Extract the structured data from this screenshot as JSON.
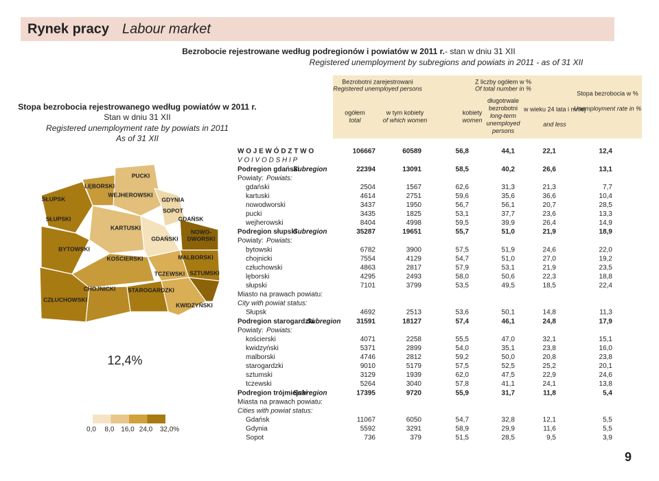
{
  "header": {
    "title": "Rynek pracy",
    "title_en": "Labour market",
    "page_number": "9"
  },
  "table_title": {
    "line1": "Bezrobocie rejestrowane według podregionów i powiatów w 2011 r.",
    "line1_suffix": " - stan w dniu 31 XII",
    "line2": "Registered unemployment by subregions and powiats in 2011 - as of 31 XII"
  },
  "map": {
    "title": "Stopa bezrobocia rejestrowanego według powiatów w 2011 r.",
    "subtitle1": "Stan w dniu 31 XII",
    "subtitle2": "Registered unemployment rate by powiats in 2011",
    "subtitle3": "As of 31 XII",
    "labels": [
      "PUCKI",
      "LĘBORSKI",
      "WEJHEROWSKI",
      "SŁUPSK",
      "GDYNIA",
      "SOPOT",
      "SŁUPSKI",
      "GDAŃSK",
      "KARTUSKI",
      "NOWO-",
      "DWORSKI",
      "GDAŃSKI",
      "BYTOWSKI",
      "MALBORSKI",
      "KOŚCIERSKI",
      "TCZEWSKI",
      "SZTUMSKI",
      "CHOJNICKI",
      "STAROGARDZKI",
      "CZŁUCHOWSKI",
      "KWIDZYŃSKI"
    ],
    "average": "12,4%",
    "legend_ticks": [
      "0,0",
      "8,0",
      "16,0",
      "24,0",
      "32,0%"
    ]
  },
  "table": {
    "columns": {
      "group1": "Bezrobotni zarejestrowani",
      "group1_en": "Registered unemployed persons",
      "total": "ogółem",
      "total_en": "total",
      "women_of": "w tym kobiety",
      "women_of_en": "of which women",
      "group2": "Z liczby ogółem w %",
      "group2_en": "Of total number in %",
      "women": "kobiety",
      "women_en": "women",
      "longterm": "długotrwale bezrobotni",
      "longterm_en": "long-term unemployed persons",
      "age": "w wieku 24 lata i mniej",
      "age_en": "and less",
      "rate": "Stopa bezrobocia w %",
      "rate_en": "Unemployment rate in %"
    },
    "rows": [
      {
        "label": "W O J E W Ó D Z T W O",
        "values": [
          "106667",
          "60589",
          "56,8",
          "44,1",
          "22,1",
          "12,4"
        ]
      },
      {
        "label": "V O I V O D S H I P"
      },
      {
        "label": "Podregion gdański",
        "label_en": "Subregion",
        "values": [
          "22394",
          "13091",
          "58,5",
          "40,2",
          "26,6",
          "13,1"
        ]
      },
      {
        "label": "Powiaty:",
        "label_en": "Powiats:"
      },
      {
        "label": "gdański",
        "values": [
          "2504",
          "1567",
          "62,6",
          "31,3",
          "21,3",
          "7,7"
        ]
      },
      {
        "label": "kartuski",
        "values": [
          "4614",
          "2751",
          "59,6",
          "35,6",
          "36,6",
          "10,4"
        ]
      },
      {
        "label": "nowodworski",
        "values": [
          "3437",
          "1950",
          "56,7",
          "56,1",
          "20,7",
          "28,5"
        ]
      },
      {
        "label": "pucki",
        "values": [
          "3435",
          "1825",
          "53,1",
          "37,7",
          "23,6",
          "13,3"
        ]
      },
      {
        "label": "wejherowski",
        "values": [
          "8404",
          "4998",
          "59,5",
          "39,9",
          "26,4",
          "14,9"
        ]
      },
      {
        "label": "Podregion słupski",
        "label_en": "Subregion",
        "values": [
          "35287",
          "19651",
          "55,7",
          "51,0",
          "21,9",
          "18,9"
        ]
      },
      {
        "label": "Powiaty:",
        "label_en": "Powiats:"
      },
      {
        "label": "bytowski",
        "values": [
          "6782",
          "3900",
          "57,5",
          "51,9",
          "24,6",
          "22,0"
        ]
      },
      {
        "label": "chojnicki",
        "values": [
          "7554",
          "4129",
          "54,7",
          "51,0",
          "27,0",
          "19,2"
        ]
      },
      {
        "label": "człuchowski",
        "values": [
          "4863",
          "2817",
          "57,9",
          "53,1",
          "21,9",
          "23,5"
        ]
      },
      {
        "label": "lęborski",
        "values": [
          "4295",
          "2493",
          "58,0",
          "50,6",
          "22,3",
          "18,8"
        ]
      },
      {
        "label": "słupski",
        "values": [
          "7101",
          "3799",
          "53,5",
          "49,5",
          "18,5",
          "22,4"
        ]
      },
      {
        "label": "Miasto na prawach powiatu:"
      },
      {
        "label": "City with powiat status:"
      },
      {
        "label": "Słupsk",
        "values": [
          "4692",
          "2513",
          "53,6",
          "50,1",
          "14,8",
          "11,3"
        ]
      },
      {
        "label": "Podregion starogardzki",
        "label_en": "Subregion",
        "values": [
          "31591",
          "18127",
          "57,4",
          "46,1",
          "24,8",
          "17,9"
        ]
      },
      {
        "label": "Powiaty:",
        "label_en": "Powiats:"
      },
      {
        "label": "kościerski",
        "values": [
          "4071",
          "2258",
          "55,5",
          "47,0",
          "32,1",
          "15,1"
        ]
      },
      {
        "label": "kwidzyński",
        "values": [
          "5371",
          "2899",
          "54,0",
          "35,1",
          "23,8",
          "16,0"
        ]
      },
      {
        "label": "malborski",
        "values": [
          "4746",
          "2812",
          "59,2",
          "50,0",
          "20,8",
          "23,8"
        ]
      },
      {
        "label": "starogardzki",
        "values": [
          "9010",
          "5179",
          "57,5",
          "52,5",
          "25,2",
          "20,1"
        ]
      },
      {
        "label": "sztumski",
        "values": [
          "3129",
          "1939",
          "62,0",
          "47,5",
          "22,9",
          "24,6"
        ]
      },
      {
        "label": "tczewski",
        "values": [
          "5264",
          "3040",
          "57,8",
          "41,1",
          "24,1",
          "13,8"
        ]
      },
      {
        "label": "Podregion trójmiejski",
        "label_en": "Subregion",
        "values": [
          "17395",
          "9720",
          "55,9",
          "31,7",
          "11,8",
          "5,4"
        ]
      },
      {
        "label": "Miasta na prawach powiatu:"
      },
      {
        "label": "Cities with powiat status:"
      },
      {
        "label": "Gdańsk",
        "values": [
          "11067",
          "6050",
          "54,7",
          "32,8",
          "12,1",
          "5,5"
        ]
      },
      {
        "label": "Gdynia",
        "values": [
          "5592",
          "3291",
          "58,9",
          "29,9",
          "11,6",
          "5,5"
        ]
      },
      {
        "label": "Sopot",
        "values": [
          "736",
          "379",
          "51,5",
          "28,5",
          "9,5",
          "3,9"
        ]
      }
    ]
  }
}
